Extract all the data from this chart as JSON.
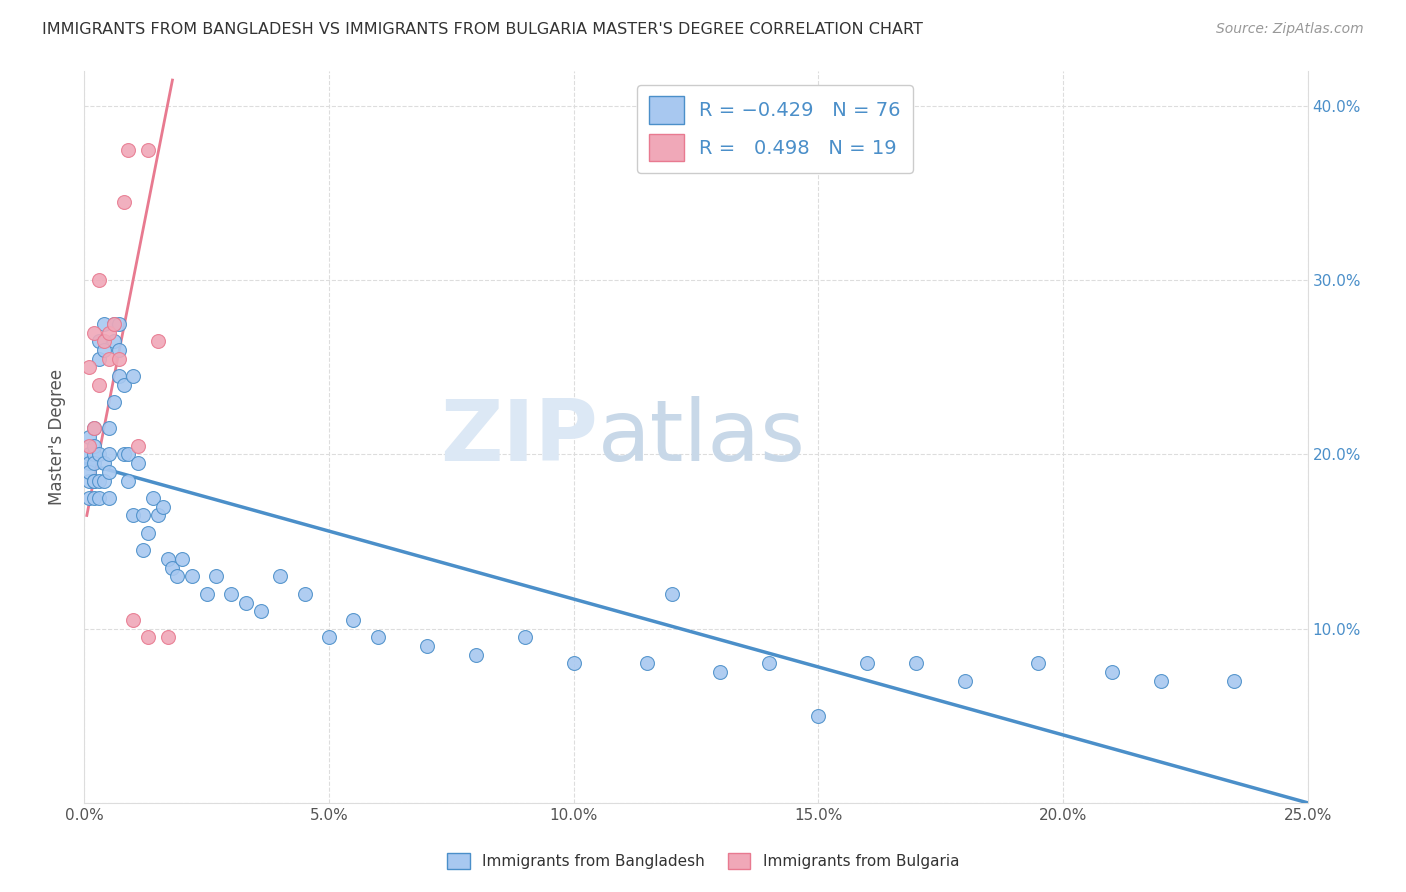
{
  "title": "IMMIGRANTS FROM BANGLADESH VS IMMIGRANTS FROM BULGARIA MASTER'S DEGREE CORRELATION CHART",
  "source": "Source: ZipAtlas.com",
  "ylabel": "Master's Degree",
  "xlim": [
    0.0,
    0.25
  ],
  "ylim": [
    0.0,
    0.42
  ],
  "color_bangladesh": "#a8c8f0",
  "color_bulgaria": "#f0a8b8",
  "color_line_bangladesh": "#4b8fc9",
  "color_line_bulgaria": "#e87a90",
  "watermark_zip": "ZIP",
  "watermark_atlas": "atlas",
  "watermark_color": "#dce8f5",
  "ban_line_x0": 0.0,
  "ban_line_y0": 0.195,
  "ban_line_x1": 0.25,
  "ban_line_y1": 0.0,
  "bul_line_x0": 0.0005,
  "bul_line_y0": 0.165,
  "bul_line_x1": 0.018,
  "bul_line_y1": 0.415,
  "bangladesh_x": [
    0.001,
    0.001,
    0.001,
    0.001,
    0.001,
    0.001,
    0.002,
    0.002,
    0.002,
    0.002,
    0.002,
    0.002,
    0.002,
    0.003,
    0.003,
    0.003,
    0.003,
    0.003,
    0.004,
    0.004,
    0.004,
    0.004,
    0.005,
    0.005,
    0.005,
    0.005,
    0.006,
    0.006,
    0.006,
    0.007,
    0.007,
    0.007,
    0.008,
    0.008,
    0.009,
    0.009,
    0.01,
    0.01,
    0.011,
    0.012,
    0.012,
    0.013,
    0.014,
    0.015,
    0.016,
    0.017,
    0.018,
    0.019,
    0.02,
    0.022,
    0.025,
    0.027,
    0.03,
    0.033,
    0.036,
    0.04,
    0.045,
    0.05,
    0.055,
    0.06,
    0.07,
    0.08,
    0.09,
    0.1,
    0.115,
    0.13,
    0.15,
    0.17,
    0.195,
    0.21,
    0.22,
    0.235,
    0.12,
    0.14,
    0.16,
    0.18
  ],
  "bangladesh_y": [
    0.185,
    0.2,
    0.21,
    0.195,
    0.175,
    0.19,
    0.185,
    0.2,
    0.175,
    0.195,
    0.205,
    0.215,
    0.185,
    0.255,
    0.265,
    0.2,
    0.185,
    0.175,
    0.275,
    0.26,
    0.195,
    0.185,
    0.2,
    0.215,
    0.19,
    0.175,
    0.275,
    0.265,
    0.23,
    0.275,
    0.26,
    0.245,
    0.24,
    0.2,
    0.2,
    0.185,
    0.165,
    0.245,
    0.195,
    0.165,
    0.145,
    0.155,
    0.175,
    0.165,
    0.17,
    0.14,
    0.135,
    0.13,
    0.14,
    0.13,
    0.12,
    0.13,
    0.12,
    0.115,
    0.11,
    0.13,
    0.12,
    0.095,
    0.105,
    0.095,
    0.09,
    0.085,
    0.095,
    0.08,
    0.08,
    0.075,
    0.05,
    0.08,
    0.08,
    0.075,
    0.07,
    0.07,
    0.12,
    0.08,
    0.08,
    0.07
  ],
  "bulgaria_x": [
    0.001,
    0.001,
    0.002,
    0.002,
    0.003,
    0.003,
    0.004,
    0.005,
    0.005,
    0.006,
    0.007,
    0.008,
    0.009,
    0.01,
    0.011,
    0.013,
    0.015,
    0.017,
    0.013
  ],
  "bulgaria_y": [
    0.205,
    0.25,
    0.215,
    0.27,
    0.24,
    0.3,
    0.265,
    0.27,
    0.255,
    0.275,
    0.255,
    0.345,
    0.375,
    0.105,
    0.205,
    0.375,
    0.265,
    0.095,
    0.095
  ]
}
